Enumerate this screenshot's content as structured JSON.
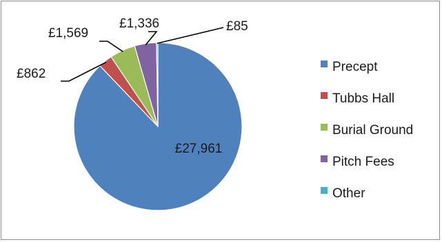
{
  "chart_data": {
    "type": "pie",
    "title": "",
    "currency": "£",
    "categories": [
      "Precept",
      "Tubbs Hall",
      "Burial Ground",
      "Pitch Fees",
      "Other"
    ],
    "values": [
      27961,
      862,
      1569,
      1336,
      85
    ],
    "data_labels": [
      "£27,961",
      "£862",
      "£1,569",
      "£1,336",
      "£85"
    ],
    "colors": [
      "#4f81bd",
      "#c0504d",
      "#9bbb59",
      "#8064a2",
      "#4bacc6"
    ],
    "legend_position": "right"
  }
}
